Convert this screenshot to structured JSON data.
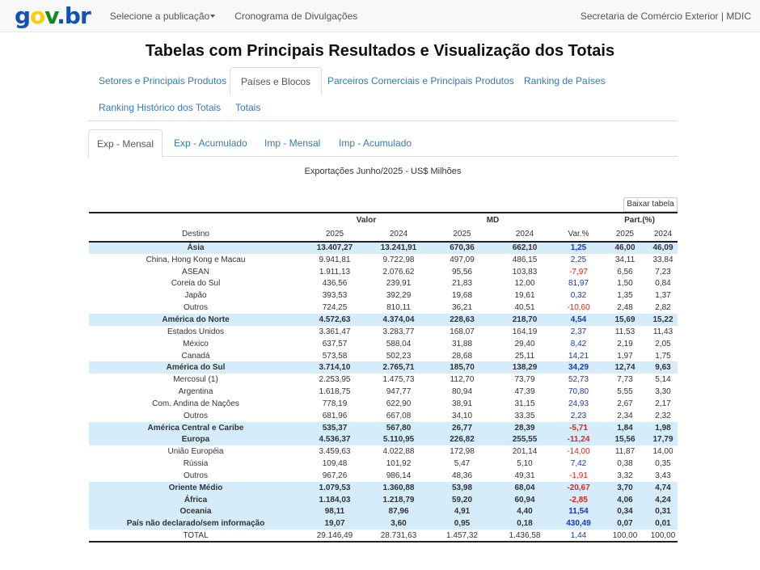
{
  "navbar": {
    "logo": {
      "g": "g",
      "o": "o",
      "v": "v",
      "dot": ".",
      "br": "br"
    },
    "publication_select": "Selecione a publicação",
    "schedule_link": "Cronograma de Divulgações",
    "org_link": "Secretaria de Comércio Exterior | MDIC"
  },
  "page_title": "Tabelas com Principais Resultados e Visualização dos Totais",
  "main_tabs": [
    "Setores e Principais Produtos",
    "Países e Blocos",
    "Parceiros Comerciais e Principais Produtos",
    "Ranking de Países",
    "Ranking Histórico dos Totais",
    "Totais"
  ],
  "sub_tabs": [
    "Exp - Mensal",
    "Exp - Acumulado",
    "Imp - Mensal",
    "Imp - Acumulado"
  ],
  "table_title": "Exportações Junho/2025 - US$ Milhões",
  "download_label": "Baixar tabela",
  "headers": {
    "valor": "Valor",
    "md": "MD",
    "part": "Part.(%)",
    "destino": "Destino",
    "y2025": "2025",
    "y2024": "2024",
    "var": "Var.%"
  },
  "rows": [
    {
      "name": "Ásia",
      "v25": "13.407,27",
      "v24": "13.241,91",
      "m25": "670,36",
      "m24": "662,10",
      "var": "1,25",
      "p25": "46,00",
      "p24": "46,09",
      "group": true,
      "neg": false
    },
    {
      "name": "China, Hong Kong e Macau",
      "v25": "9.941,81",
      "v24": "9.722,98",
      "m25": "497,09",
      "m24": "486,15",
      "var": "2,25",
      "p25": "34,11",
      "p24": "33,84",
      "group": false,
      "neg": false
    },
    {
      "name": "ASEAN",
      "v25": "1.911,13",
      "v24": "2.076,62",
      "m25": "95,56",
      "m24": "103,83",
      "var": "-7,97",
      "p25": "6,56",
      "p24": "7,23",
      "group": false,
      "neg": true
    },
    {
      "name": "Coreia do Sul",
      "v25": "436,56",
      "v24": "239,91",
      "m25": "21,83",
      "m24": "12,00",
      "var": "81,97",
      "p25": "1,50",
      "p24": "0,84",
      "group": false,
      "neg": false
    },
    {
      "name": "Japão",
      "v25": "393,53",
      "v24": "392,29",
      "m25": "19,68",
      "m24": "19,61",
      "var": "0,32",
      "p25": "1,35",
      "p24": "1,37",
      "group": false,
      "neg": false
    },
    {
      "name": "Outros",
      "v25": "724,25",
      "v24": "810,11",
      "m25": "36,21",
      "m24": "40,51",
      "var": "-10,60",
      "p25": "2,48",
      "p24": "2,82",
      "group": false,
      "neg": true
    },
    {
      "name": "América do Norte",
      "v25": "4.572,63",
      "v24": "4.374,04",
      "m25": "228,63",
      "m24": "218,70",
      "var": "4,54",
      "p25": "15,69",
      "p24": "15,22",
      "group": true,
      "neg": false
    },
    {
      "name": "Estados Unidos",
      "v25": "3.361,47",
      "v24": "3.283,77",
      "m25": "168,07",
      "m24": "164,19",
      "var": "2,37",
      "p25": "11,53",
      "p24": "11,43",
      "group": false,
      "neg": false
    },
    {
      "name": "México",
      "v25": "637,57",
      "v24": "588,04",
      "m25": "31,88",
      "m24": "29,40",
      "var": "8,42",
      "p25": "2,19",
      "p24": "2,05",
      "group": false,
      "neg": false
    },
    {
      "name": "Canadá",
      "v25": "573,58",
      "v24": "502,23",
      "m25": "28,68",
      "m24": "25,11",
      "var": "14,21",
      "p25": "1,97",
      "p24": "1,75",
      "group": false,
      "neg": false
    },
    {
      "name": "América do Sul",
      "v25": "3.714,10",
      "v24": "2.765,71",
      "m25": "185,70",
      "m24": "138,29",
      "var": "34,29",
      "p25": "12,74",
      "p24": "9,63",
      "group": true,
      "neg": false
    },
    {
      "name": "Mercosul (1)",
      "v25": "2.253,95",
      "v24": "1.475,73",
      "m25": "112,70",
      "m24": "73,79",
      "var": "52,73",
      "p25": "7,73",
      "p24": "5,14",
      "group": false,
      "neg": false
    },
    {
      "name": "Argentina",
      "v25": "1.618,75",
      "v24": "947,77",
      "m25": "80,94",
      "m24": "47,39",
      "var": "70,80",
      "p25": "5,55",
      "p24": "3,30",
      "group": false,
      "neg": false
    },
    {
      "name": "Com. Andina de Nações",
      "v25": "778,19",
      "v24": "622,90",
      "m25": "38,91",
      "m24": "31,15",
      "var": "24,93",
      "p25": "2,67",
      "p24": "2,17",
      "group": false,
      "neg": false
    },
    {
      "name": "Outros",
      "v25": "681,96",
      "v24": "667,08",
      "m25": "34,10",
      "m24": "33,35",
      "var": "2,23",
      "p25": "2,34",
      "p24": "2,32",
      "group": false,
      "neg": false
    },
    {
      "name": "América Central e Caribe",
      "v25": "535,37",
      "v24": "567,80",
      "m25": "26,77",
      "m24": "28,39",
      "var": "-5,71",
      "p25": "1,84",
      "p24": "1,98",
      "group": true,
      "neg": true
    },
    {
      "name": "Europa",
      "v25": "4.536,37",
      "v24": "5.110,95",
      "m25": "226,82",
      "m24": "255,55",
      "var": "-11,24",
      "p25": "15,56",
      "p24": "17,79",
      "group": true,
      "neg": true
    },
    {
      "name": "União Européia",
      "v25": "3.459,63",
      "v24": "4.022,88",
      "m25": "172,98",
      "m24": "201,14",
      "var": "-14,00",
      "p25": "11,87",
      "p24": "14,00",
      "group": false,
      "neg": true
    },
    {
      "name": "Rússia",
      "v25": "109,48",
      "v24": "101,92",
      "m25": "5,47",
      "m24": "5,10",
      "var": "7,42",
      "p25": "0,38",
      "p24": "0,35",
      "group": false,
      "neg": false
    },
    {
      "name": "Outros",
      "v25": "967,26",
      "v24": "986,14",
      "m25": "48,36",
      "m24": "49,31",
      "var": "-1,91",
      "p25": "3,32",
      "p24": "3,43",
      "group": false,
      "neg": true
    },
    {
      "name": "Oriente Médio",
      "v25": "1.079,53",
      "v24": "1.360,88",
      "m25": "53,98",
      "m24": "68,04",
      "var": "-20,67",
      "p25": "3,70",
      "p24": "4,74",
      "group": true,
      "neg": true
    },
    {
      "name": "África",
      "v25": "1.184,03",
      "v24": "1.218,79",
      "m25": "59,20",
      "m24": "60,94",
      "var": "-2,85",
      "p25": "4,06",
      "p24": "4,24",
      "group": true,
      "neg": true
    },
    {
      "name": "Oceania",
      "v25": "98,11",
      "v24": "87,96",
      "m25": "4,91",
      "m24": "4,40",
      "var": "11,54",
      "p25": "0,34",
      "p24": "0,31",
      "group": true,
      "neg": false
    },
    {
      "name": "País não declarado/sem informação",
      "v25": "19,07",
      "v24": "3,60",
      "m25": "0,95",
      "m24": "0,18",
      "var": "430,49",
      "p25": "0,07",
      "p24": "0,01",
      "group": true,
      "neg": false
    },
    {
      "name": "TOTAL",
      "v25": "29.146,49",
      "v24": "28.731,63",
      "m25": "1.457,32",
      "m24": "1.436,58",
      "var": "1,44",
      "p25": "100,00",
      "p24": "100,00",
      "group": false,
      "neg": false,
      "total": true
    }
  ]
}
